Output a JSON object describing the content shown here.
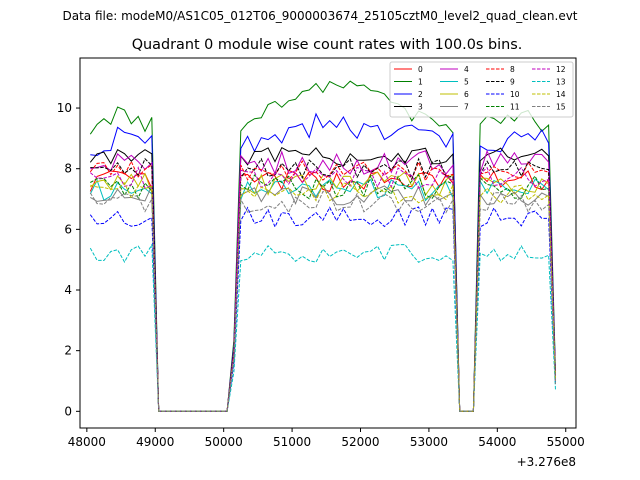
{
  "figure": {
    "suptitle": "Data file: modeM0/AS1C05_012T06_9000003674_25105cztM0_level2_quad_clean.evt"
  },
  "chart_data": {
    "type": "line",
    "title": "Quadrant 0 module wise count rates with 100.0s bins.",
    "xlabel": "",
    "ylabel": "",
    "x_offset_label": "+3.276e8",
    "xlim": [
      47900,
      55150
    ],
    "ylim": [
      -0.55,
      11.65
    ],
    "xticks": [
      {
        "value": 48000,
        "label": "48000"
      },
      {
        "value": 49000,
        "label": "49000"
      },
      {
        "value": 50000,
        "label": "50000"
      },
      {
        "value": 51000,
        "label": "51000"
      },
      {
        "value": 52000,
        "label": "52000"
      },
      {
        "value": 53000,
        "label": "53000"
      },
      {
        "value": 54000,
        "label": "54000"
      },
      {
        "value": 55000,
        "label": "55000"
      }
    ],
    "yticks": [
      {
        "value": 0,
        "label": "0"
      },
      {
        "value": 2,
        "label": "2"
      },
      {
        "value": 4,
        "label": "4"
      },
      {
        "value": 6,
        "label": "6"
      },
      {
        "value": 8,
        "label": "8"
      },
      {
        "value": 10,
        "label": "10"
      }
    ],
    "grid": false,
    "legend": {
      "placement": "top-right",
      "columns": 4
    },
    "segments": [
      {
        "start": 48050,
        "end": 48950
      },
      {
        "start": 50150,
        "end": 53350
      },
      {
        "start": 53750,
        "end": 54850
      }
    ],
    "gaps": [
      {
        "start": 49050,
        "end": 50050
      },
      {
        "start": 53450,
        "end": 53650
      }
    ],
    "series": [
      {
        "name": "0",
        "color": "#ff0000",
        "dashed": false,
        "mean": 7.6,
        "noise": 0.35,
        "end": 1.1
      },
      {
        "name": "1",
        "color": "#008000",
        "dashed": false,
        "mean": 9.4,
        "noise": 0.3,
        "end": 1.3,
        "rise": 1.3
      },
      {
        "name": "2",
        "color": "#0000ff",
        "dashed": false,
        "mean": 8.8,
        "noise": 0.45,
        "end": 1.2,
        "rise": 0.7
      },
      {
        "name": "3",
        "color": "#000000",
        "dashed": false,
        "mean": 8.4,
        "noise": 0.3,
        "end": 1.1
      },
      {
        "name": "4",
        "color": "#bf00bf",
        "dashed": false,
        "mean": 8.2,
        "noise": 0.4,
        "end": 1.1
      },
      {
        "name": "5",
        "color": "#00bfbf",
        "dashed": false,
        "mean": 7.3,
        "noise": 0.35,
        "end": 1.0
      },
      {
        "name": "6",
        "color": "#bfbf00",
        "dashed": false,
        "mean": 7.5,
        "noise": 0.4,
        "end": 1.0
      },
      {
        "name": "7",
        "color": "#808080",
        "dashed": false,
        "mean": 7.1,
        "noise": 0.35,
        "end": 0.9
      },
      {
        "name": "8",
        "color": "#ff0000",
        "dashed": true,
        "mean": 7.9,
        "noise": 0.35,
        "end": 1.1
      },
      {
        "name": "9",
        "color": "#000000",
        "dashed": true,
        "mean": 8.0,
        "noise": 0.35,
        "end": 1.1
      },
      {
        "name": "10",
        "color": "#0000ff",
        "dashed": true,
        "mean": 6.4,
        "noise": 0.35,
        "end": 0.9
      },
      {
        "name": "11",
        "color": "#008000",
        "dashed": true,
        "mean": 7.4,
        "noise": 0.4,
        "end": 1.0
      },
      {
        "name": "12",
        "color": "#bf00bf",
        "dashed": true,
        "mean": 7.7,
        "noise": 0.35,
        "end": 1.0
      },
      {
        "name": "13",
        "color": "#00bfbf",
        "dashed": true,
        "mean": 5.2,
        "noise": 0.3,
        "end": 0.7
      },
      {
        "name": "14",
        "color": "#bfbf00",
        "dashed": true,
        "mean": 7.2,
        "noise": 0.35,
        "end": 1.0
      },
      {
        "name": "15",
        "color": "#808080",
        "dashed": true,
        "mean": 6.9,
        "noise": 0.35,
        "end": 0.9
      }
    ]
  }
}
